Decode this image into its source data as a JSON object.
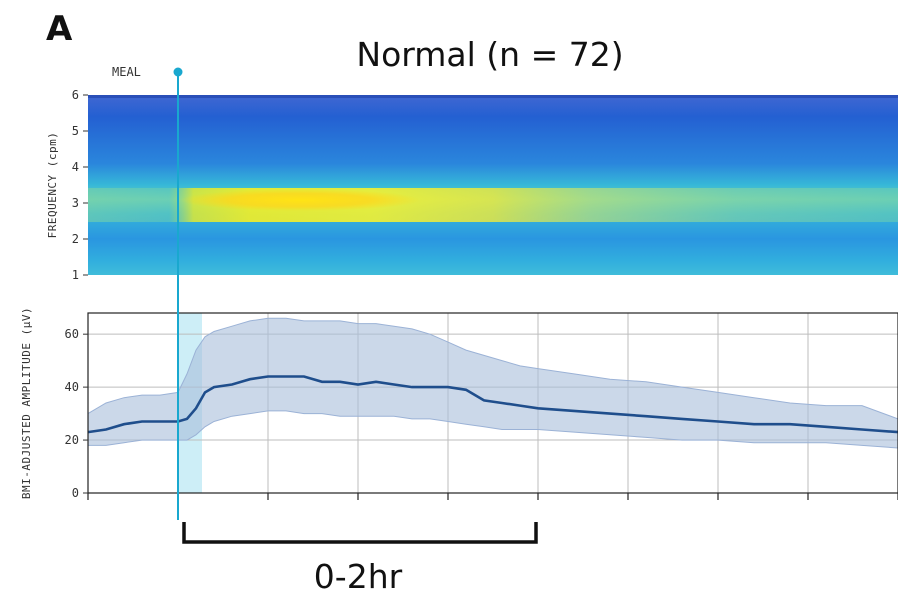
{
  "panel_label": "A",
  "title": "Normal (n = 72)",
  "meal_label": "MEAL",
  "window_label": "0-2hr",
  "colors": {
    "spectrogram_low": "#1f55c9",
    "spectrogram_mid": "#2a9fe0",
    "spectrogram_band": "#7ed3a8",
    "spectrogram_high": "#fff21a",
    "meal_line": "#19a8cf",
    "meal_window": "#cdeef7",
    "median_line": "#1f4e8c",
    "iqr_band": "#a9bedb"
  },
  "chart_data": [
    {
      "type": "heatmap",
      "ylabel": "FREQUENCY (cpm)",
      "ylim": [
        1,
        6
      ],
      "yticks": [
        1,
        2,
        3,
        4,
        5,
        6
      ],
      "band_center_cpm": 3,
      "meal_time_hr": 0,
      "time_range_hr": [
        -0.5,
        4
      ]
    },
    {
      "type": "line",
      "ylabel": "BMI-ADJUSTED AMPLITUDE (μV)",
      "ylim": [
        0,
        68
      ],
      "yticks": [
        0,
        20,
        40,
        60
      ],
      "grid": true,
      "xlim": [
        -0.5,
        4
      ],
      "meal_time_hr": 0,
      "x_tick_interval_hr": 0.5,
      "series": [
        {
          "role": "median",
          "x": [
            -0.5,
            -0.4,
            -0.3,
            -0.2,
            -0.1,
            0.0,
            0.05,
            0.1,
            0.15,
            0.2,
            0.3,
            0.4,
            0.5,
            0.6,
            0.7,
            0.8,
            0.9,
            1.0,
            1.1,
            1.2,
            1.3,
            1.4,
            1.5,
            1.6,
            1.7,
            1.8,
            1.9,
            2.0,
            2.2,
            2.4,
            2.6,
            2.8,
            3.0,
            3.2,
            3.4,
            3.6,
            3.8,
            4.0
          ],
          "y": [
            23,
            24,
            26,
            27,
            27,
            27,
            28,
            32,
            38,
            40,
            41,
            43,
            44,
            44,
            44,
            42,
            42,
            41,
            42,
            41,
            40,
            40,
            40,
            39,
            35,
            34,
            33,
            32,
            31,
            30,
            29,
            28,
            27,
            26,
            26,
            25,
            24,
            23
          ]
        },
        {
          "role": "iqr_upper",
          "x": [
            -0.5,
            -0.4,
            -0.3,
            -0.2,
            -0.1,
            0.0,
            0.05,
            0.1,
            0.15,
            0.2,
            0.3,
            0.4,
            0.5,
            0.6,
            0.7,
            0.8,
            0.9,
            1.0,
            1.1,
            1.2,
            1.3,
            1.4,
            1.5,
            1.6,
            1.7,
            1.8,
            1.9,
            2.0,
            2.2,
            2.4,
            2.6,
            2.8,
            3.0,
            3.2,
            3.4,
            3.6,
            3.8,
            4.0
          ],
          "y": [
            30,
            34,
            36,
            37,
            37,
            38,
            45,
            54,
            59,
            61,
            63,
            65,
            66,
            66,
            65,
            65,
            65,
            64,
            64,
            63,
            62,
            60,
            57,
            54,
            52,
            50,
            48,
            47,
            45,
            43,
            42,
            40,
            38,
            36,
            34,
            33,
            33,
            28
          ]
        },
        {
          "role": "iqr_lower",
          "x": [
            -0.5,
            -0.4,
            -0.3,
            -0.2,
            -0.1,
            0.0,
            0.05,
            0.1,
            0.15,
            0.2,
            0.3,
            0.4,
            0.5,
            0.6,
            0.7,
            0.8,
            0.9,
            1.0,
            1.1,
            1.2,
            1.3,
            1.4,
            1.5,
            1.6,
            1.7,
            1.8,
            1.9,
            2.0,
            2.2,
            2.4,
            2.6,
            2.8,
            3.0,
            3.2,
            3.4,
            3.6,
            3.8,
            4.0
          ],
          "y": [
            18,
            18,
            19,
            20,
            20,
            20,
            20,
            22,
            25,
            27,
            29,
            30,
            31,
            31,
            30,
            30,
            29,
            29,
            29,
            29,
            28,
            28,
            27,
            26,
            25,
            24,
            24,
            24,
            23,
            22,
            21,
            20,
            20,
            19,
            19,
            19,
            18,
            17
          ]
        }
      ]
    }
  ]
}
